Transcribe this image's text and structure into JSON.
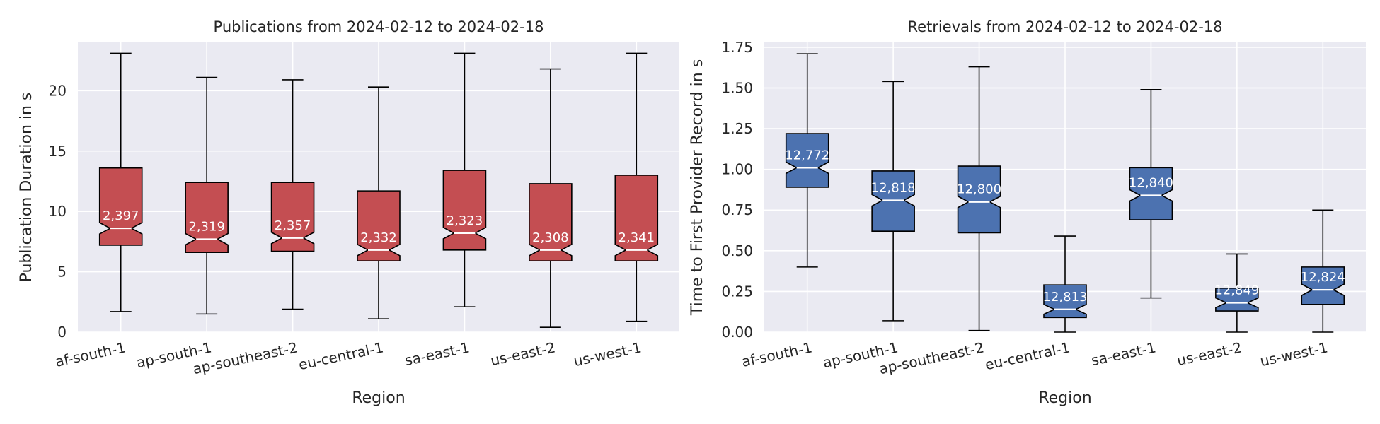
{
  "figure": {
    "background": "#ffffff",
    "axes_background": "#eaeaf2",
    "grid_color": "#ffffff"
  },
  "chart_data": [
    {
      "type": "boxplot",
      "notched": true,
      "title": "Publications from 2024-02-12 to 2024-02-18",
      "xlabel": "Region",
      "ylabel": "Publication Duration in s",
      "ylim": [
        0,
        24
      ],
      "yticks": [
        0,
        5,
        10,
        15,
        20
      ],
      "ytick_labels": [
        "0",
        "5",
        "10",
        "15",
        "20"
      ],
      "grid": true,
      "box_color": "#c44e52",
      "median_color": "#ffffff",
      "categories": [
        "af-south-1",
        "ap-south-1",
        "ap-southeast-2",
        "eu-central-1",
        "sa-east-1",
        "us-east-2",
        "us-west-1"
      ],
      "boxes": [
        {
          "whislo": 1.7,
          "q1": 7.2,
          "med": 8.6,
          "q3": 13.6,
          "whishi": 23.1,
          "count": "2,397"
        },
        {
          "whislo": 1.5,
          "q1": 6.6,
          "med": 7.7,
          "q3": 12.4,
          "whishi": 21.1,
          "count": "2,319"
        },
        {
          "whislo": 1.9,
          "q1": 6.7,
          "med": 7.8,
          "q3": 12.4,
          "whishi": 20.9,
          "count": "2,357"
        },
        {
          "whislo": 1.1,
          "q1": 5.9,
          "med": 6.8,
          "q3": 11.7,
          "whishi": 20.3,
          "count": "2,332"
        },
        {
          "whislo": 2.1,
          "q1": 6.8,
          "med": 8.2,
          "q3": 13.4,
          "whishi": 23.1,
          "count": "2,323"
        },
        {
          "whislo": 0.4,
          "q1": 5.9,
          "med": 6.8,
          "q3": 12.3,
          "whishi": 21.8,
          "count": "2,308"
        },
        {
          "whislo": 0.9,
          "q1": 5.9,
          "med": 6.8,
          "q3": 13.0,
          "whishi": 23.1,
          "count": "2,341"
        }
      ]
    },
    {
      "type": "boxplot",
      "notched": true,
      "title": "Retrievals from 2024-02-12 to 2024-02-18",
      "xlabel": "Region",
      "ylabel": "Time to First Provider Record in s",
      "ylim": [
        0,
        1.78
      ],
      "yticks": [
        0,
        0.25,
        0.5,
        0.75,
        1.0,
        1.25,
        1.5,
        1.75
      ],
      "ytick_labels": [
        "0.00",
        "0.25",
        "0.50",
        "0.75",
        "1.00",
        "1.25",
        "1.50",
        "1.75"
      ],
      "grid": true,
      "box_color": "#4c72b0",
      "median_color": "#ffffff",
      "categories": [
        "af-south-1",
        "ap-south-1",
        "ap-southeast-2",
        "eu-central-1",
        "sa-east-1",
        "us-east-2",
        "us-west-1"
      ],
      "boxes": [
        {
          "whislo": 0.4,
          "q1": 0.89,
          "med": 1.01,
          "q3": 1.22,
          "whishi": 1.71,
          "count": "12,772"
        },
        {
          "whislo": 0.07,
          "q1": 0.62,
          "med": 0.81,
          "q3": 0.99,
          "whishi": 1.54,
          "count": "12,818"
        },
        {
          "whislo": 0.01,
          "q1": 0.61,
          "med": 0.8,
          "q3": 1.02,
          "whishi": 1.63,
          "count": "12,800"
        },
        {
          "whislo": 0.0,
          "q1": 0.09,
          "med": 0.14,
          "q3": 0.29,
          "whishi": 0.59,
          "count": "12,813"
        },
        {
          "whislo": 0.21,
          "q1": 0.69,
          "med": 0.84,
          "q3": 1.01,
          "whishi": 1.49,
          "count": "12,840"
        },
        {
          "whislo": 0.0,
          "q1": 0.13,
          "med": 0.18,
          "q3": 0.27,
          "whishi": 0.48,
          "count": "12,849"
        },
        {
          "whislo": 0.0,
          "q1": 0.17,
          "med": 0.26,
          "q3": 0.4,
          "whishi": 0.75,
          "count": "12,824"
        }
      ]
    }
  ]
}
